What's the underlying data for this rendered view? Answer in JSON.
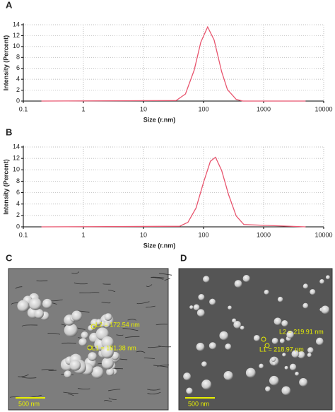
{
  "chart_data": [
    {
      "type": "line",
      "label": "A",
      "xlabel": "Size (r.nm)",
      "ylabel": "Intensity (Percent)",
      "x": [
        0.2,
        35,
        50,
        70,
        90,
        117,
        150,
        200,
        250,
        350,
        450,
        5000
      ],
      "values": [
        0,
        0.1,
        1.3,
        5.7,
        10.8,
        13.6,
        11.2,
        5.4,
        2.1,
        0.3,
        0,
        0
      ],
      "color": "#e8556e",
      "xscale": "log",
      "xlim": [
        0.1,
        10000
      ],
      "xticks": [
        0.1,
        1,
        10,
        100,
        1000,
        10000
      ],
      "ylim": [
        0,
        14
      ],
      "yticks": [
        0,
        2,
        4,
        6,
        8,
        10,
        12,
        14
      ],
      "grid": true
    },
    {
      "type": "line",
      "label": "B",
      "xlabel": "Size (r.nm)",
      "ylabel": "Intensity (Percent)",
      "x": [
        0.2,
        40,
        55,
        75,
        100,
        130,
        158,
        200,
        260,
        350,
        470,
        5000
      ],
      "values": [
        0,
        0.1,
        0.8,
        3.3,
        7.8,
        11.5,
        12.2,
        9.9,
        5.7,
        1.9,
        0.4,
        0
      ],
      "color": "#e8556e",
      "xscale": "log",
      "xlim": [
        0.1,
        10000
      ],
      "xticks": [
        0.1,
        1,
        10,
        100,
        1000,
        10000
      ],
      "ylim": [
        0,
        14
      ],
      "yticks": [
        0,
        2,
        4,
        6,
        8,
        10,
        12,
        14
      ],
      "grid": true
    }
  ],
  "images": [
    {
      "label": "C",
      "annotations": [
        "L2 = 172.54 nm",
        "L1 = 181.38 nm"
      ],
      "scale_bar": "500 nm"
    },
    {
      "label": "D",
      "annotations": [
        "L2 = 219.91 nm",
        "L1 = 218.97 nm"
      ],
      "scale_bar": "500 nm"
    }
  ]
}
